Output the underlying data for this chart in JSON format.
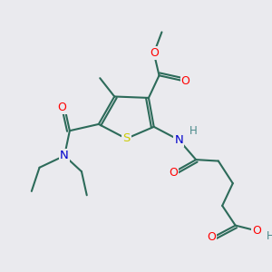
{
  "background_color": "#eaeaee",
  "atom_colors": {
    "O": "#ff0000",
    "N": "#0000cc",
    "S": "#cccc00",
    "H": "#4a8a8a",
    "C": "#2d6b5a",
    "default": "#2d6b5a"
  },
  "bond_color": "#2d6b5a",
  "bond_width": 1.5,
  "figsize": [
    3.0,
    3.0
  ],
  "dpi": 100
}
